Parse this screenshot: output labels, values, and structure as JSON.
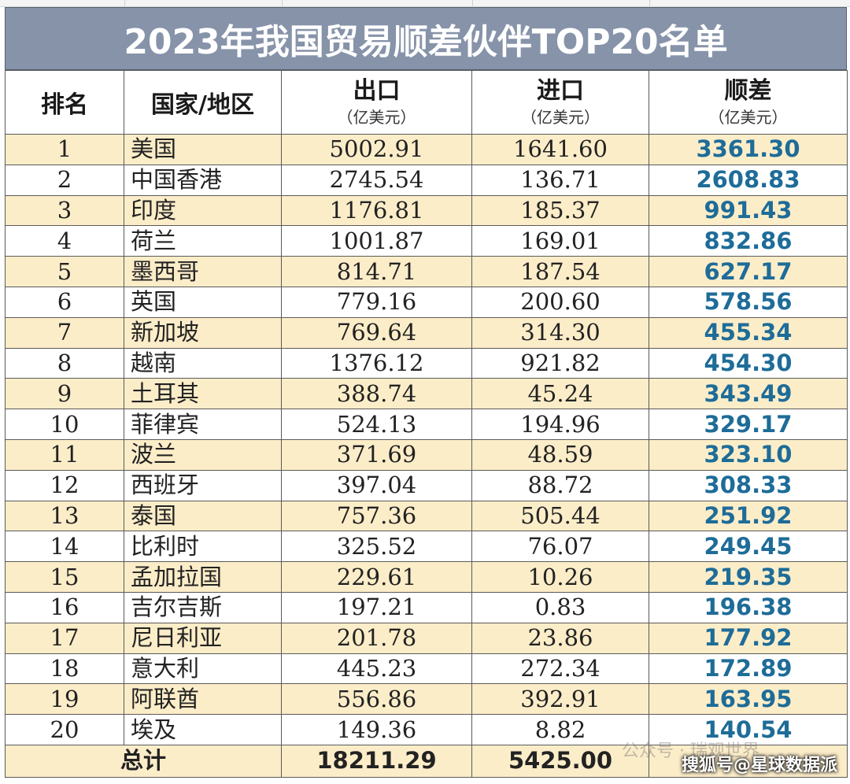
{
  "title": "2023年我国贸易顺差伙伴TOP20名单",
  "headers": {
    "rank": "排名",
    "country": "国家/地区",
    "export": "出口",
    "import": "进口",
    "surplus": "顺差",
    "unit": "（亿美元）"
  },
  "rows": [
    {
      "rank": "1",
      "country": "美国",
      "export": "5002.91",
      "import": "1641.60",
      "surplus": "3361.30"
    },
    {
      "rank": "2",
      "country": "中国香港",
      "export": "2745.54",
      "import": "136.71",
      "surplus": "2608.83"
    },
    {
      "rank": "3",
      "country": "印度",
      "export": "1176.81",
      "import": "185.37",
      "surplus": "991.43"
    },
    {
      "rank": "4",
      "country": "荷兰",
      "export": "1001.87",
      "import": "169.01",
      "surplus": "832.86"
    },
    {
      "rank": "5",
      "country": "墨西哥",
      "export": "814.71",
      "import": "187.54",
      "surplus": "627.17"
    },
    {
      "rank": "6",
      "country": "英国",
      "export": "779.16",
      "import": "200.60",
      "surplus": "578.56"
    },
    {
      "rank": "7",
      "country": "新加坡",
      "export": "769.64",
      "import": "314.30",
      "surplus": "455.34"
    },
    {
      "rank": "8",
      "country": "越南",
      "export": "1376.12",
      "import": "921.82",
      "surplus": "454.30"
    },
    {
      "rank": "9",
      "country": "土耳其",
      "export": "388.74",
      "import": "45.24",
      "surplus": "343.49"
    },
    {
      "rank": "10",
      "country": "菲律宾",
      "export": "524.13",
      "import": "194.96",
      "surplus": "329.17"
    },
    {
      "rank": "11",
      "country": "波兰",
      "export": "371.69",
      "import": "48.59",
      "surplus": "323.10"
    },
    {
      "rank": "12",
      "country": "西班牙",
      "export": "397.04",
      "import": "88.72",
      "surplus": "308.33"
    },
    {
      "rank": "13",
      "country": "泰国",
      "export": "757.36",
      "import": "505.44",
      "surplus": "251.92"
    },
    {
      "rank": "14",
      "country": "比利时",
      "export": "325.52",
      "import": "76.07",
      "surplus": "249.45"
    },
    {
      "rank": "15",
      "country": "孟加拉国",
      "export": "229.61",
      "import": "10.26",
      "surplus": "219.35"
    },
    {
      "rank": "16",
      "country": "吉尔吉斯",
      "export": "197.21",
      "import": "0.83",
      "surplus": "196.38"
    },
    {
      "rank": "17",
      "country": "尼日利亚",
      "export": "201.78",
      "import": "23.86",
      "surplus": "177.92"
    },
    {
      "rank": "18",
      "country": "意大利",
      "export": "445.23",
      "import": "272.34",
      "surplus": "172.89"
    },
    {
      "rank": "19",
      "country": "阿联酋",
      "export": "556.86",
      "import": "392.91",
      "surplus": "163.95"
    },
    {
      "rank": "20",
      "country": "埃及",
      "export": "149.36",
      "import": "8.82",
      "surplus": "140.54"
    }
  ],
  "total": {
    "label": "总计",
    "export": "18211.29",
    "import": "5425.00"
  },
  "watermark": {
    "faint": "公众号 · 瑞观世界",
    "main": "搜狐号@星球数据派"
  },
  "colors": {
    "title_bg": "#8693a9",
    "row_highlight": "#fcedc9",
    "surplus_text": "#1e6c98"
  }
}
